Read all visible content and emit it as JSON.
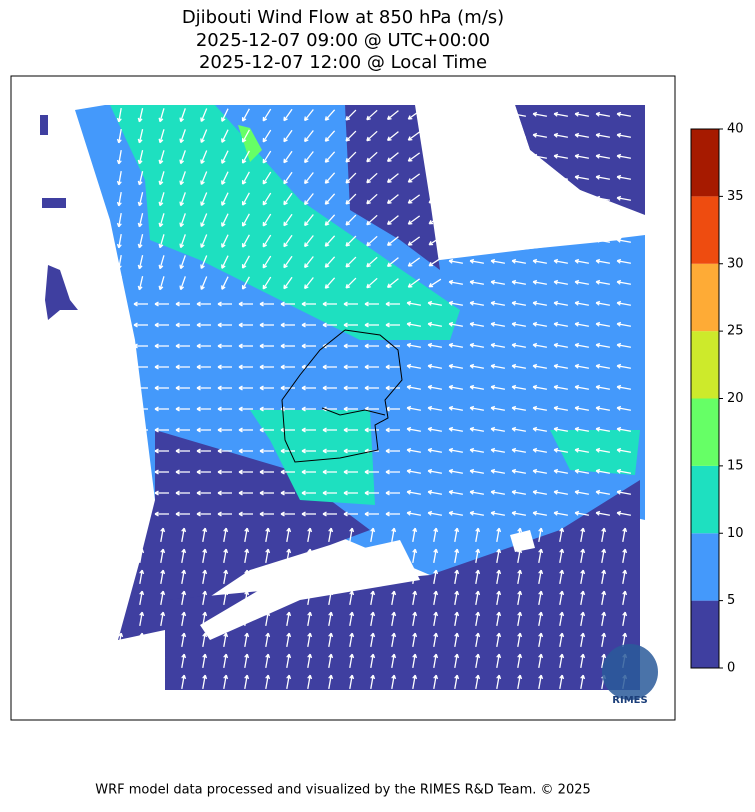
{
  "title": [
    "Djibouti Wind Flow at 850 hPa (m/s)",
    "2025-12-07 09:00 @ UTC+00:00",
    "2025-12-07 12:00 @ Local Time"
  ],
  "colorbar": {
    "bins": [
      0,
      5,
      10,
      15,
      20,
      25,
      30,
      35,
      40
    ],
    "colors": [
      "#3f3fa0",
      "#4499fb",
      "#1ee0c0",
      "#66ff66",
      "#cdea2b",
      "#feab36",
      "#ee4c10",
      "#a61a00"
    ],
    "ticks": [
      0,
      5,
      10,
      15,
      20,
      25,
      30,
      35,
      40
    ]
  },
  "logo": "RIMES",
  "footer": "WRF model data processed and visualized by the RIMES R&D Team. © 2025"
}
